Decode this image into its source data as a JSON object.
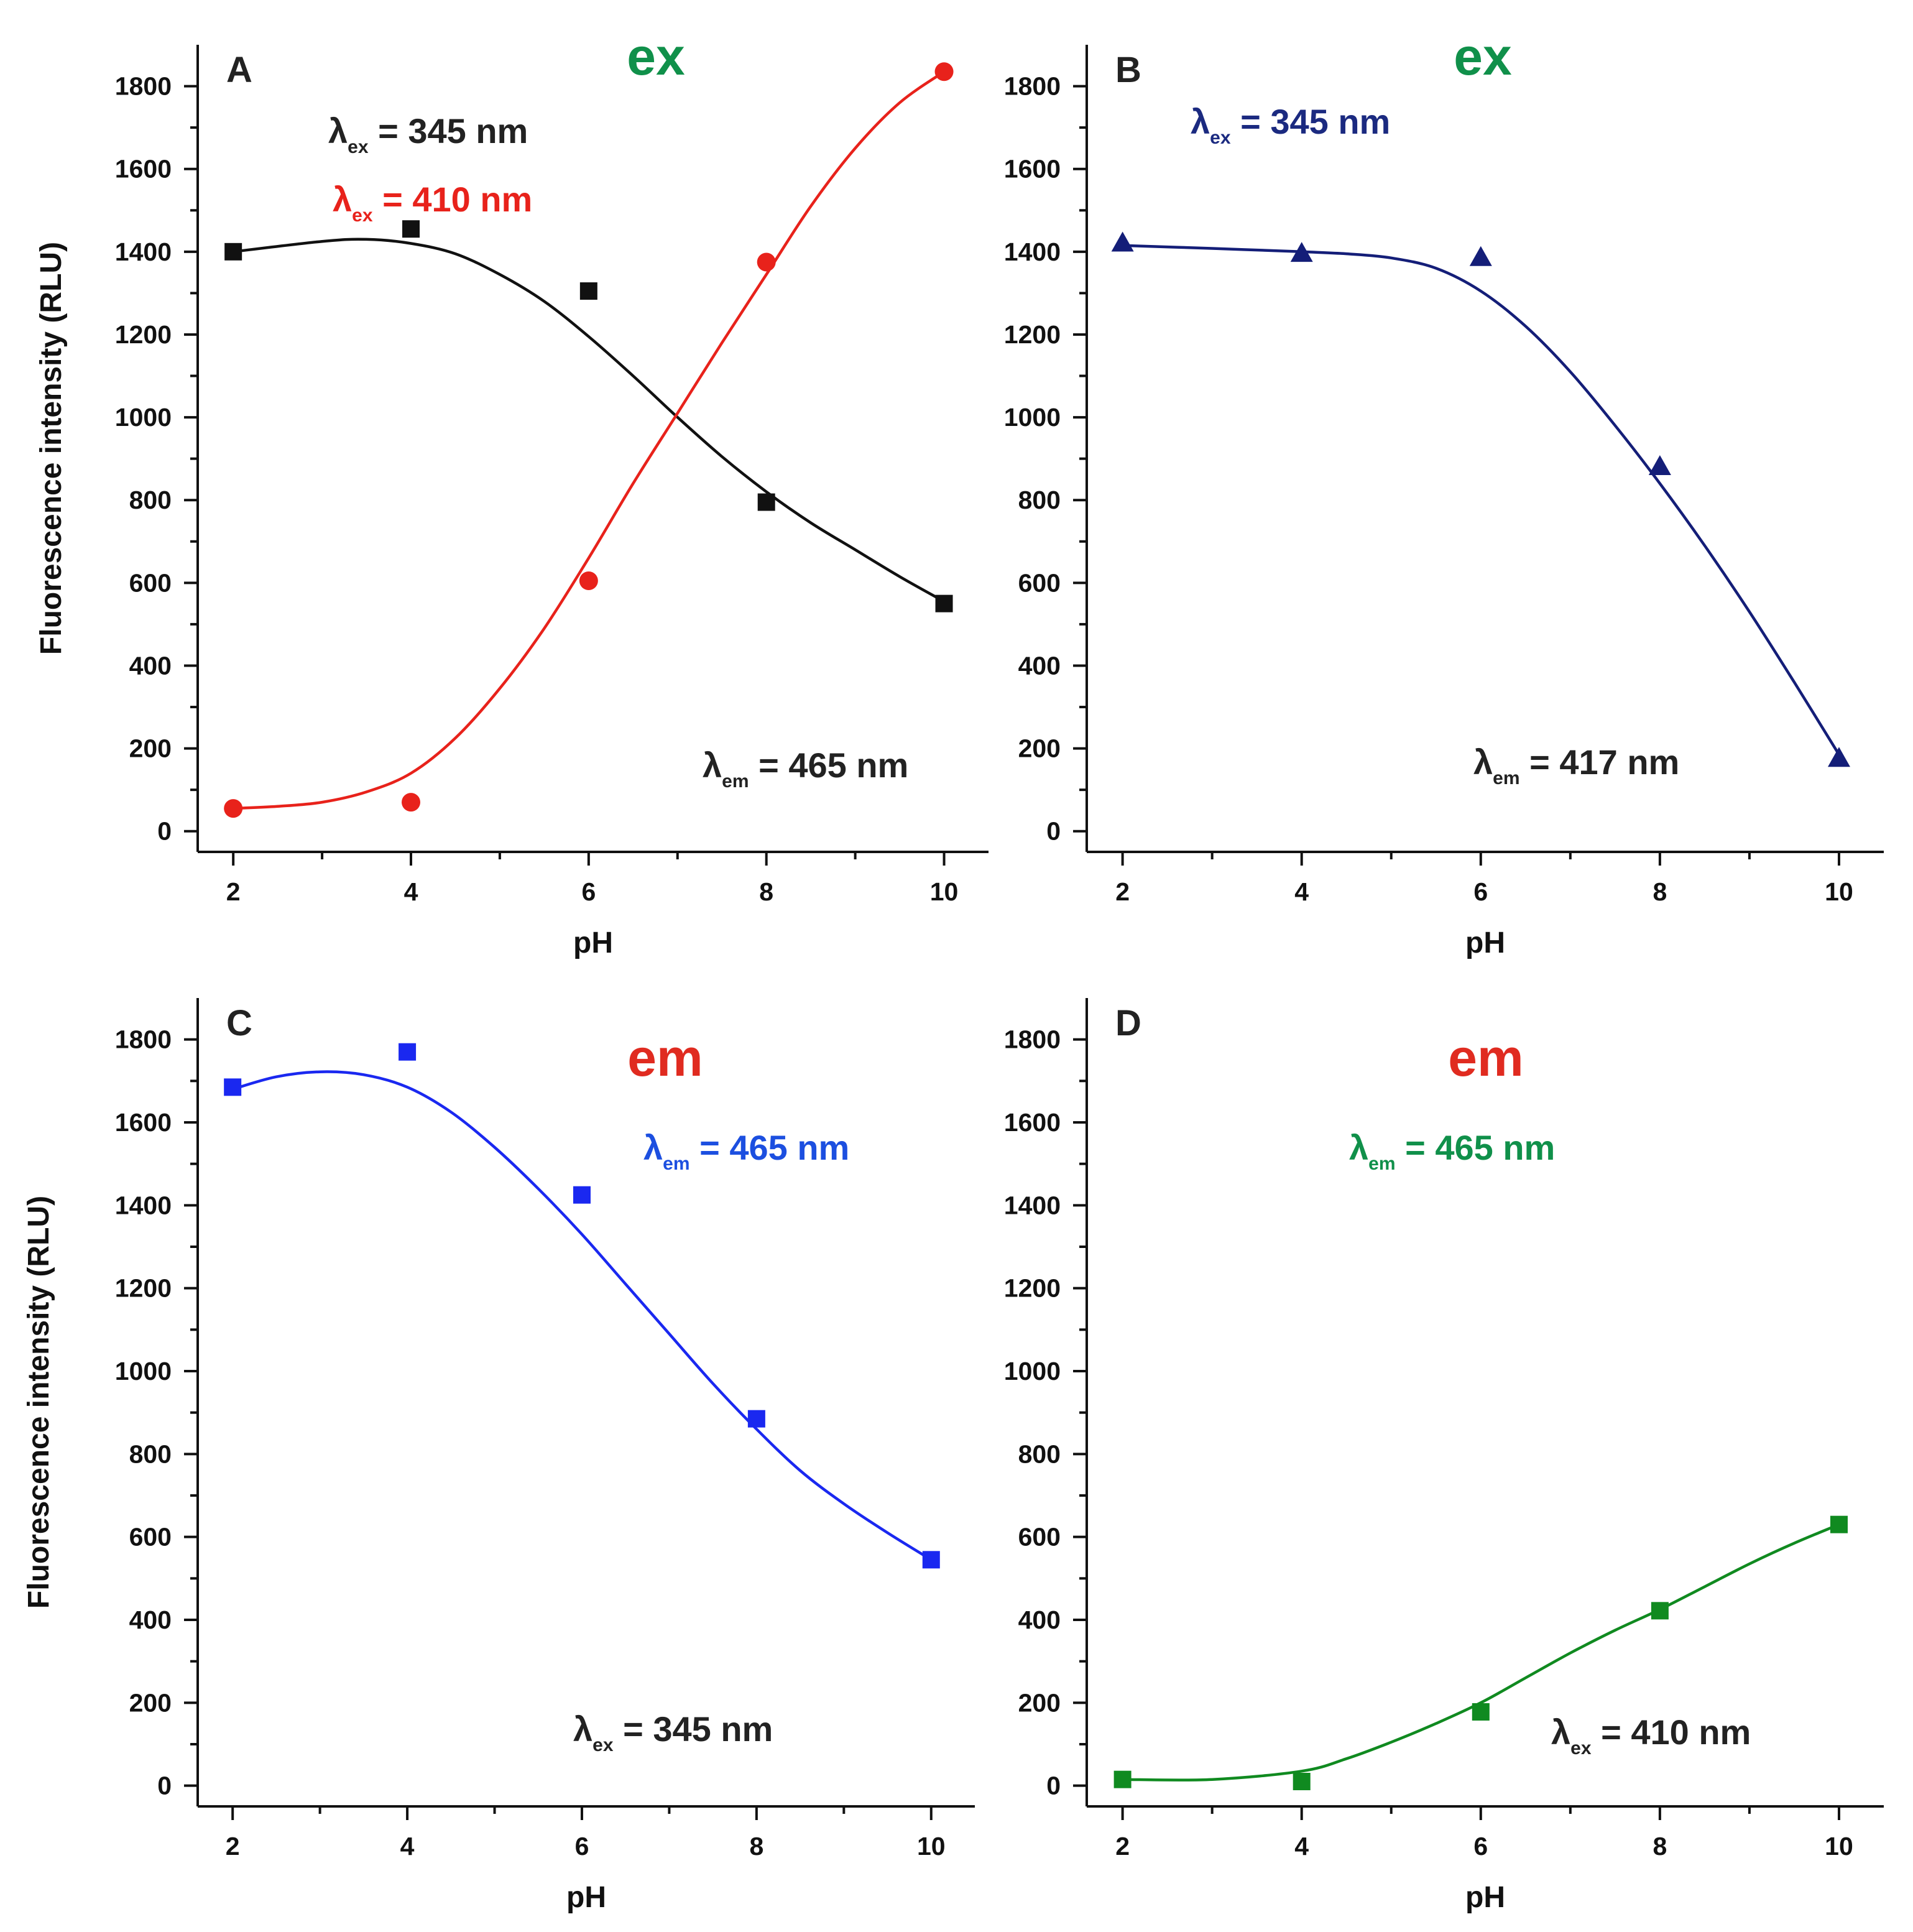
{
  "chart_data": [
    {
      "type": "scatter",
      "panel": "A",
      "mode_label": "ex",
      "mode_color": "#10904a",
      "xlabel": "pH",
      "ylabel": "Fluorescence intensity (RLU)",
      "xlim": [
        1.6,
        10.5
      ],
      "ylim": [
        -50,
        1900
      ],
      "xticks": [
        2,
        4,
        6,
        8,
        10
      ],
      "yticks": [
        0,
        200,
        400,
        600,
        800,
        1000,
        1200,
        1400,
        1600,
        1800
      ],
      "annotations": [
        {
          "prefix": "λ",
          "sub": "ex",
          "text": " = 345 nm",
          "color": "#222222"
        },
        {
          "prefix": "λ",
          "sub": "ex",
          "text": " = 410 nm",
          "color": "#e8221b"
        },
        {
          "prefix": "λ",
          "sub": "em",
          "text": " = 465 nm",
          "color": "#222222"
        }
      ],
      "series": [
        {
          "name": "λex = 345 nm",
          "color": "#111111",
          "marker": "square",
          "x": [
            2,
            4,
            6,
            8,
            10
          ],
          "y": [
            1400,
            1455,
            1305,
            795,
            550
          ],
          "fit_x": [
            2,
            3,
            3.5,
            4,
            4.5,
            5,
            5.5,
            6,
            6.5,
            7,
            7.5,
            8,
            8.5,
            9,
            9.5,
            10
          ],
          "fit_y": [
            1400,
            1425,
            1430,
            1420,
            1395,
            1345,
            1280,
            1195,
            1100,
            1000,
            905,
            820,
            745,
            680,
            615,
            555
          ]
        },
        {
          "name": "λex = 410 nm",
          "color": "#e8221b",
          "marker": "circle",
          "x": [
            2,
            4,
            6,
            8,
            10
          ],
          "y": [
            55,
            70,
            605,
            1375,
            1835
          ],
          "fit_x": [
            2,
            2.5,
            3,
            3.5,
            4,
            4.5,
            5,
            5.5,
            6,
            6.5,
            7,
            7.5,
            8,
            8.5,
            9,
            9.5,
            10
          ],
          "fit_y": [
            55,
            60,
            70,
            95,
            140,
            225,
            345,
            490,
            660,
            840,
            1010,
            1180,
            1345,
            1510,
            1650,
            1760,
            1835
          ]
        }
      ]
    },
    {
      "type": "scatter",
      "panel": "B",
      "mode_label": "ex",
      "mode_color": "#10904a",
      "xlabel": "pH",
      "ylabel": "",
      "xlim": [
        1.6,
        10.5
      ],
      "ylim": [
        -50,
        1900
      ],
      "xticks": [
        2,
        4,
        6,
        8,
        10
      ],
      "yticks": [
        0,
        200,
        400,
        600,
        800,
        1000,
        1200,
        1400,
        1600,
        1800
      ],
      "annotations": [
        {
          "prefix": "λ",
          "sub": "ex",
          "text": " = 345 nm",
          "color": "#1b2a80"
        },
        {
          "prefix": "λ",
          "sub": "em",
          "text": " = 417 nm",
          "color": "#222222"
        }
      ],
      "series": [
        {
          "name": "λex = 345 nm",
          "color": "#141e78",
          "marker": "triangle",
          "x": [
            2,
            4,
            6,
            8,
            10
          ],
          "y": [
            1420,
            1395,
            1385,
            880,
            175
          ],
          "fit_x": [
            2,
            3,
            4,
            4.5,
            5,
            5.5,
            6,
            6.5,
            7,
            7.5,
            8,
            8.5,
            9,
            9.5,
            10
          ],
          "fit_y": [
            1415,
            1408,
            1400,
            1395,
            1385,
            1360,
            1305,
            1220,
            1110,
            980,
            840,
            690,
            530,
            360,
            185
          ]
        }
      ]
    },
    {
      "type": "scatter",
      "panel": "C",
      "mode_label": "em",
      "mode_color": "#e02b20",
      "xlabel": "pH",
      "ylabel": "Fluorescence intensity (RLU)",
      "xlim": [
        1.6,
        10.5
      ],
      "ylim": [
        -50,
        1900
      ],
      "xticks": [
        2,
        4,
        6,
        8,
        10
      ],
      "yticks": [
        0,
        200,
        400,
        600,
        800,
        1000,
        1200,
        1400,
        1600,
        1800
      ],
      "annotations": [
        {
          "prefix": "λ",
          "sub": "em",
          "text": " = 465 nm",
          "color": "#1c4fe0"
        },
        {
          "prefix": "λ",
          "sub": "ex",
          "text": " = 345 nm",
          "color": "#222222"
        }
      ],
      "series": [
        {
          "name": "λem = 465 nm",
          "color": "#1a28f0",
          "marker": "square",
          "x": [
            2,
            4,
            6,
            8,
            10
          ],
          "y": [
            1685,
            1770,
            1425,
            885,
            545
          ],
          "fit_x": [
            2,
            2.5,
            3,
            3.5,
            4,
            4.5,
            5,
            5.5,
            6,
            6.5,
            7,
            7.5,
            8,
            8.5,
            9,
            9.5,
            10
          ],
          "fit_y": [
            1680,
            1710,
            1722,
            1715,
            1685,
            1625,
            1540,
            1440,
            1330,
            1210,
            1090,
            970,
            860,
            760,
            680,
            610,
            545
          ]
        }
      ]
    },
    {
      "type": "scatter",
      "panel": "D",
      "mode_label": "em",
      "mode_color": "#e02b20",
      "xlabel": "pH",
      "ylabel": "",
      "xlim": [
        1.6,
        10.5
      ],
      "ylim": [
        -50,
        1900
      ],
      "xticks": [
        2,
        4,
        6,
        8,
        10
      ],
      "yticks": [
        0,
        200,
        400,
        600,
        800,
        1000,
        1200,
        1400,
        1600,
        1800
      ],
      "annotations": [
        {
          "prefix": "λ",
          "sub": "em",
          "text": " = 465 nm",
          "color": "#10904a"
        },
        {
          "prefix": "λ",
          "sub": "ex",
          "text": " = 410 nm",
          "color": "#222222"
        }
      ],
      "series": [
        {
          "name": "λem = 465 nm",
          "color": "#108a20",
          "marker": "square",
          "x": [
            2,
            4,
            6,
            8,
            10
          ],
          "y": [
            15,
            10,
            178,
            422,
            630
          ],
          "fit_x": [
            2,
            3,
            4,
            4.5,
            5,
            5.5,
            6,
            6.5,
            7,
            7.5,
            8,
            8.5,
            9,
            9.5,
            10
          ],
          "fit_y": [
            15,
            15,
            35,
            65,
            105,
            150,
            200,
            260,
            320,
            375,
            425,
            480,
            535,
            585,
            630
          ]
        }
      ]
    }
  ]
}
